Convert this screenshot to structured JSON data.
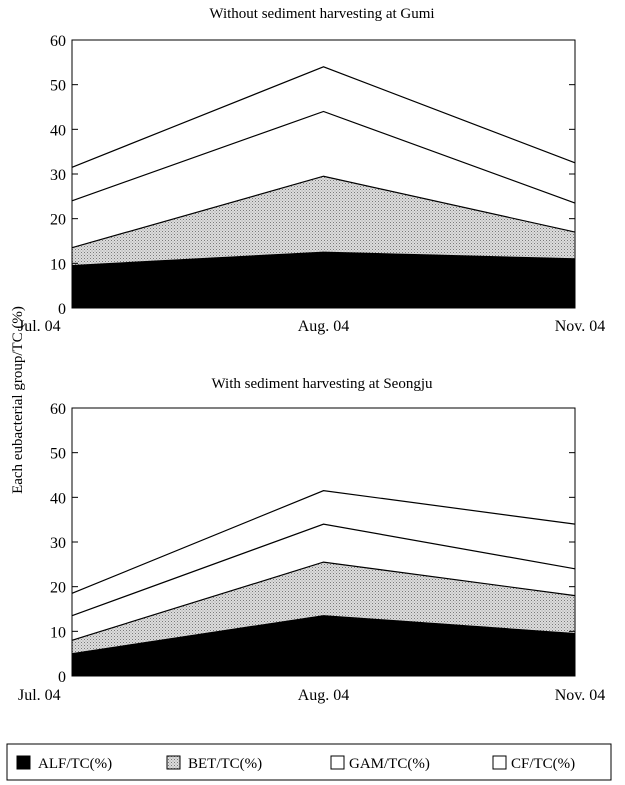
{
  "y_axis_label": "Each eubacterial group/TC (%)",
  "chart_data": [
    {
      "type": "area",
      "stacked": true,
      "title": "Without sediment harvesting at Gumi",
      "categories": [
        "Jul. 04",
        "Aug. 04",
        "Nov. 04"
      ],
      "ylim": [
        0,
        60
      ],
      "yticks": [
        0,
        10,
        20,
        30,
        40,
        50,
        60
      ],
      "grid": false,
      "series": [
        {
          "name": "ALF/TC(%)",
          "values": [
            9.5,
            12.5,
            11
          ]
        },
        {
          "name": "BET/TC(%)",
          "values": [
            4,
            17,
            6
          ]
        },
        {
          "name": "GAM/TC(%)",
          "values": [
            10.5,
            14.5,
            6.5
          ]
        },
        {
          "name": "CF/TC(%)",
          "values": [
            7.5,
            10,
            9
          ]
        }
      ]
    },
    {
      "type": "area",
      "stacked": true,
      "title": "With sediment harvesting at Seongju",
      "categories": [
        "Jul. 04",
        "Aug. 04",
        "Nov. 04"
      ],
      "ylim": [
        0,
        60
      ],
      "yticks": [
        0,
        10,
        20,
        30,
        40,
        50,
        60
      ],
      "grid": false,
      "series": [
        {
          "name": "ALF/TC(%)",
          "values": [
            5,
            13.5,
            9.5
          ]
        },
        {
          "name": "BET/TC(%)",
          "values": [
            3,
            12,
            8.5
          ]
        },
        {
          "name": "GAM/TC(%)",
          "values": [
            5.5,
            8.5,
            6
          ]
        },
        {
          "name": "CF/TC(%)",
          "values": [
            5,
            7.5,
            10
          ]
        }
      ]
    }
  ],
  "legend": {
    "position": "bottom",
    "items": [
      {
        "label": "ALF/TC(%)",
        "fill": "solid-black"
      },
      {
        "label": "BET/TC(%)",
        "fill": "stipple-gray"
      },
      {
        "label": "GAM/TC(%)",
        "fill": "white"
      },
      {
        "label": "CF/TC(%)",
        "fill": "white"
      }
    ]
  },
  "colors": {
    "alf": "#000000",
    "bet": "#c8c8c8",
    "gam": "#ffffff",
    "cf": "#ffffff",
    "line": "#000000"
  }
}
